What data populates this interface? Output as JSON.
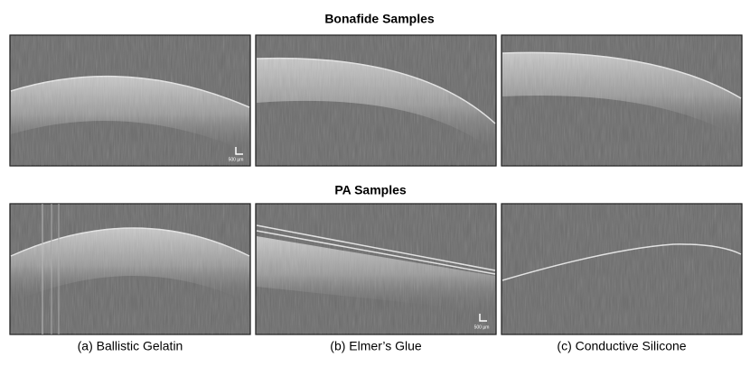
{
  "headings": {
    "bonafide": "Bonafide Samples",
    "pa": "PA Samples"
  },
  "captions": [
    "(a) Ballistic Gelatin",
    "(b) Elmer’s Glue",
    "(c) Conductive Silicone"
  ],
  "scale_bars": [
    "500 µm",
    "500 µm"
  ]
}
